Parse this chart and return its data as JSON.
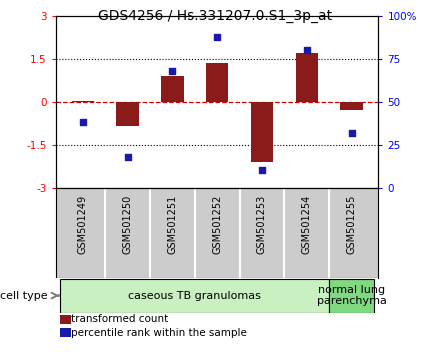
{
  "title": "GDS4256 / Hs.331207.0.S1_3p_at",
  "samples": [
    "GSM501249",
    "GSM501250",
    "GSM501251",
    "GSM501252",
    "GSM501253",
    "GSM501254",
    "GSM501255"
  ],
  "transformed_count": [
    0.02,
    -0.85,
    0.9,
    1.35,
    -2.1,
    1.7,
    -0.28
  ],
  "percentile_rank": [
    38,
    18,
    68,
    88,
    10,
    80,
    32
  ],
  "ylim_left": [
    -3,
    3
  ],
  "ylim_right": [
    0,
    100
  ],
  "yticks_left": [
    -3,
    -1.5,
    0,
    1.5,
    3
  ],
  "yticks_right": [
    0,
    25,
    50,
    75,
    100
  ],
  "ytick_labels_right": [
    "0",
    "25",
    "50",
    "75",
    "100%"
  ],
  "bar_color": "#8B1A1A",
  "dot_color": "#1a1aaa",
  "cell_types": [
    {
      "label": "caseous TB granulomas",
      "indices": [
        0,
        1,
        2,
        3,
        4,
        5
      ],
      "color": "#c8f0c0"
    },
    {
      "label": "normal lung\nparenchyma",
      "indices": [
        6
      ],
      "color": "#80d880"
    }
  ],
  "cell_type_label": "cell type",
  "legend_bar_label": "transformed count",
  "legend_dot_label": "percentile rank within the sample",
  "background_color": "#ffffff",
  "xlabel_bg": "#cccccc",
  "dashed_zero_color": "#cc0000",
  "title_fontsize": 10,
  "tick_fontsize": 7.5,
  "label_fontsize": 7,
  "cell_fontsize": 8
}
